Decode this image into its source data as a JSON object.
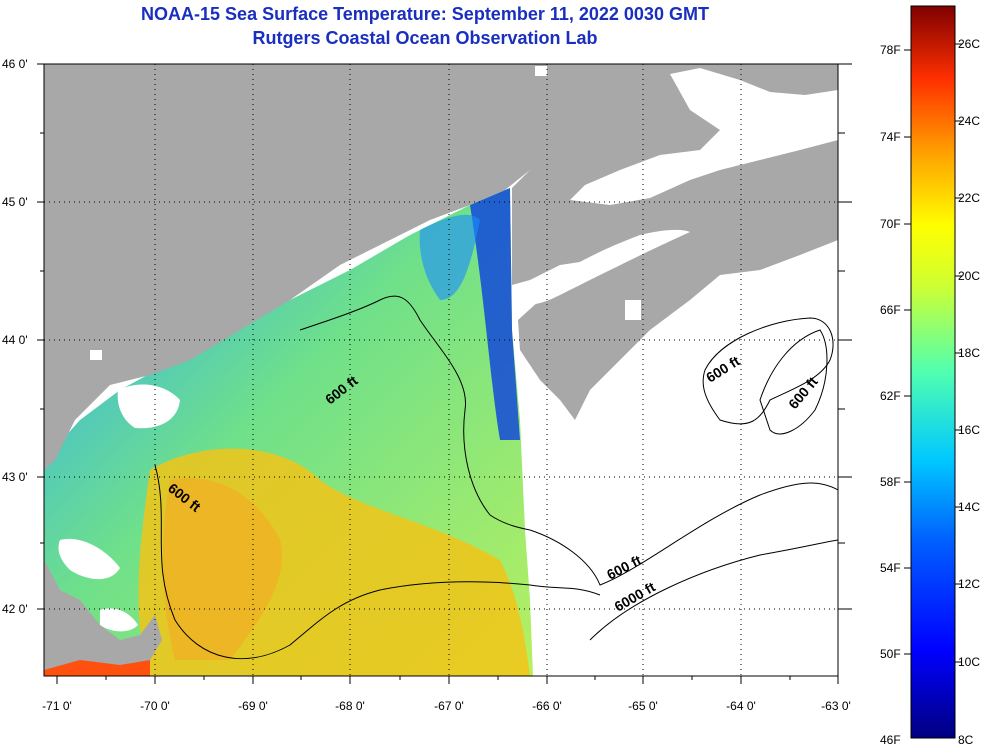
{
  "title_line1": "NOAA-15 Sea Surface Temperature:  September 11, 2022 0030 GMT",
  "title_line2": "Rutgers Coastal Ocean Observation Lab",
  "map": {
    "lat_labels": [
      "46 0'",
      "45 0'",
      "44 0'",
      "43 0'",
      "42 0'"
    ],
    "lon_labels": [
      "-71 0'",
      "-70 0'",
      "-69 0'",
      "-68 0'",
      "-67 0'",
      "-66 0'",
      "-65 0'",
      "-64 0'",
      "-63 0'"
    ],
    "contour_labels": [
      "600 ft",
      "600 ft",
      "600 ft",
      "600 ft",
      "600 ft",
      "6000 ft"
    ]
  },
  "colorbar": {
    "fahrenheit_labels": [
      "78F",
      "74F",
      "70F",
      "66F",
      "62F",
      "58F",
      "54F",
      "50F",
      "46F"
    ],
    "celsius_labels": [
      "26C",
      "24C",
      "22C",
      "20C",
      "18C",
      "16C",
      "14C",
      "12C",
      "10C",
      "8C"
    ]
  },
  "colors": {
    "title": "#1a2fbf",
    "land": "#a8a8a8",
    "cloud": "#ffffff"
  }
}
